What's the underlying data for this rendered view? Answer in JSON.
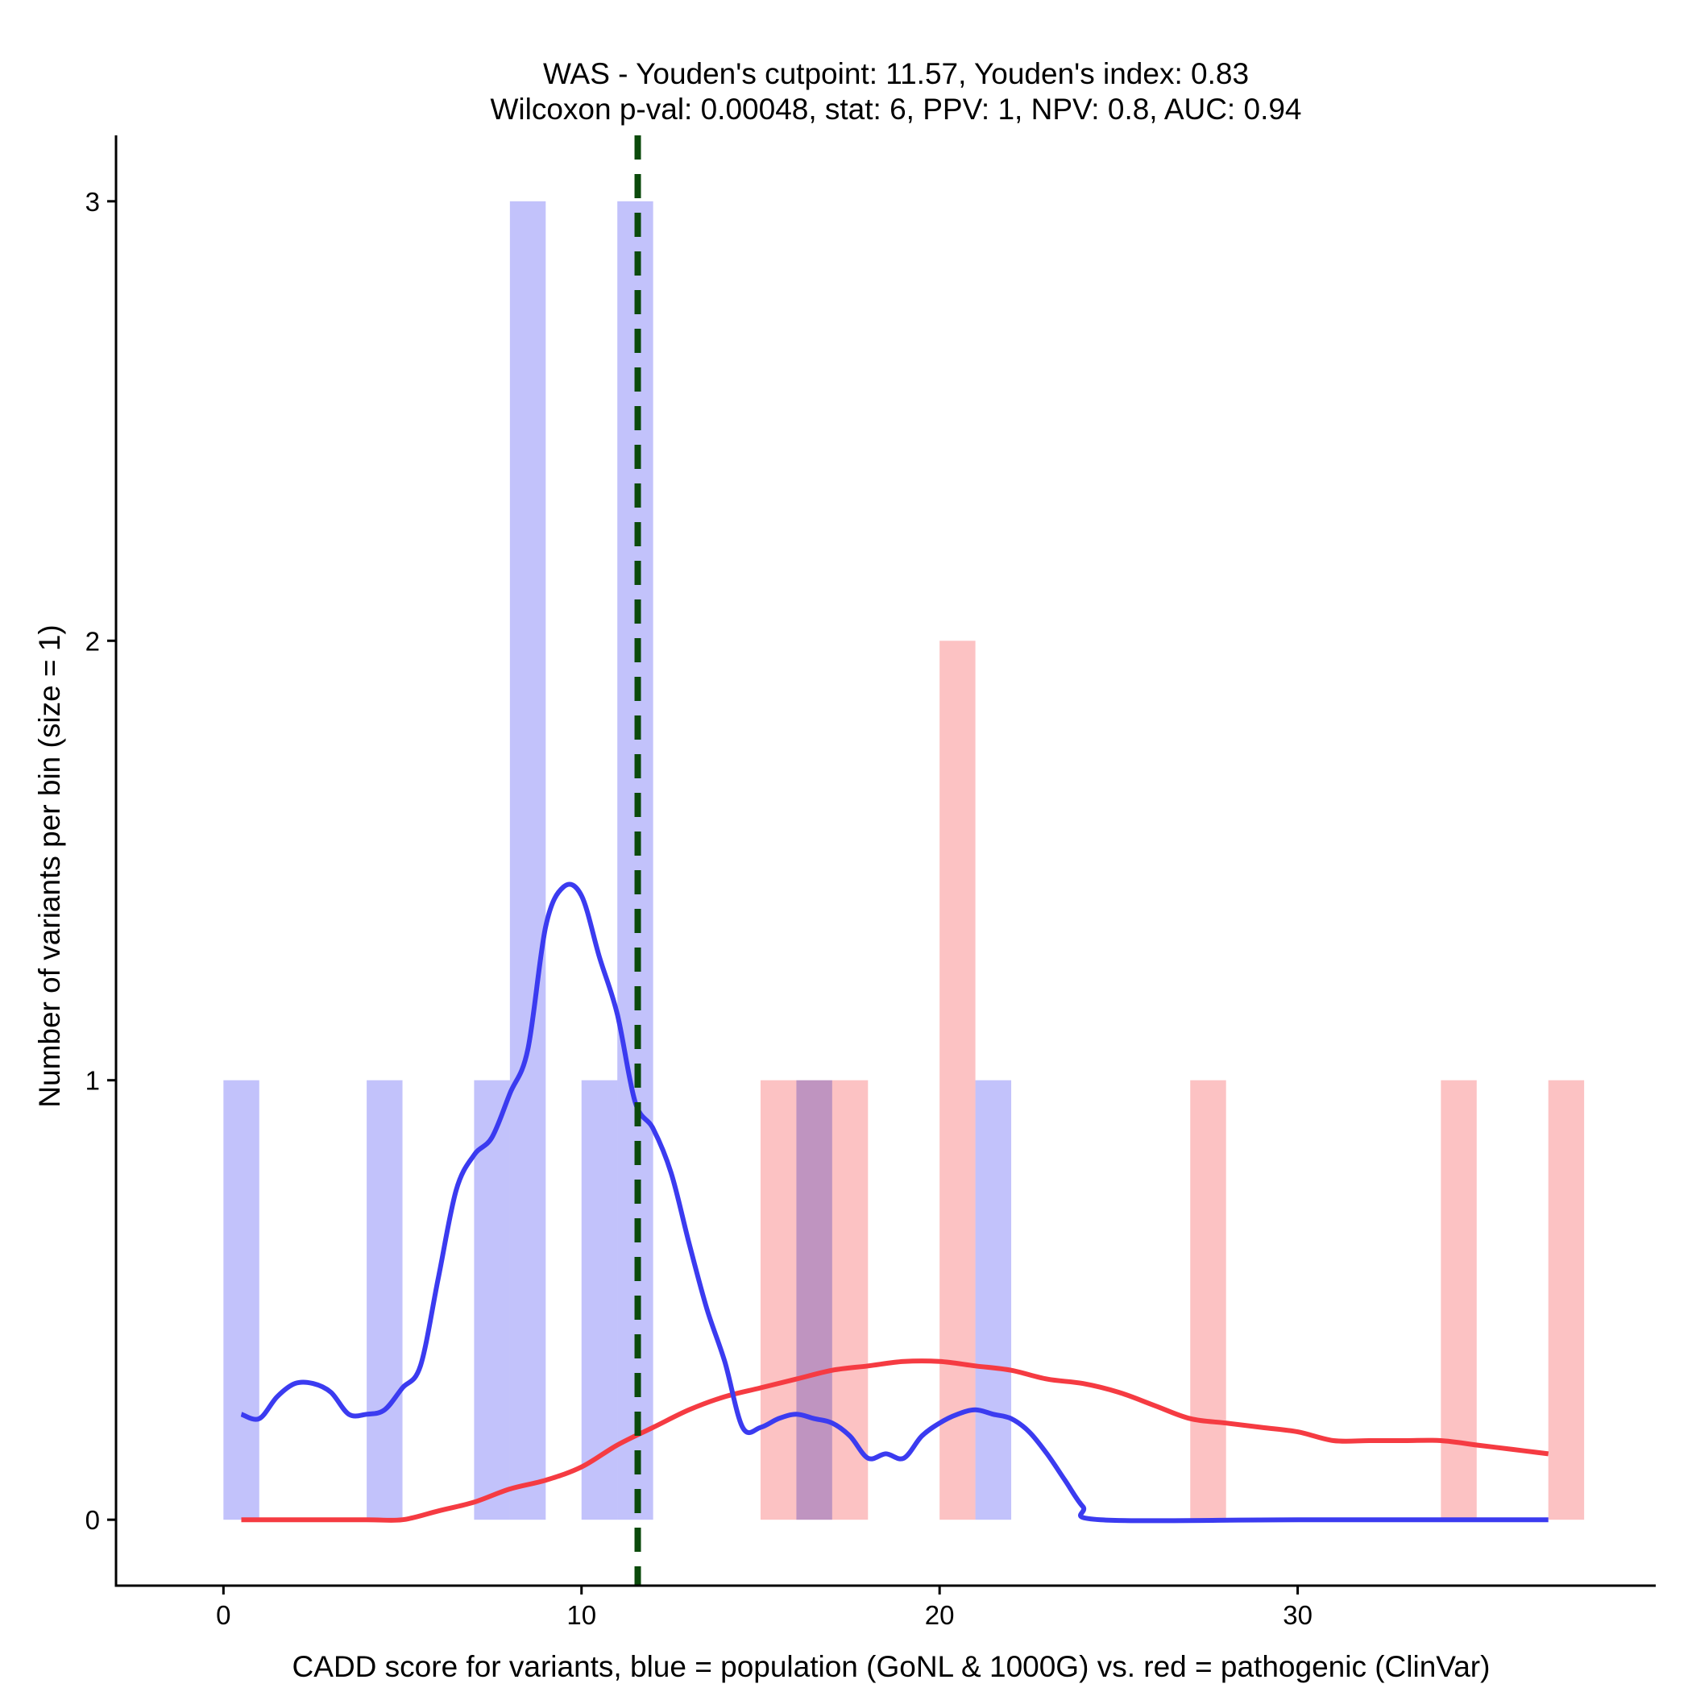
{
  "chart_data": {
    "type": "bar",
    "title_lines": [
      "WAS - Youden's cutpoint: 11.57, Youden's index: 0.83",
      "Wilcoxon p-val: 0.00048, stat: 6, PPV: 1, NPV: 0.8, AUC: 0.94"
    ],
    "xlabel": "CADD score for variants, blue = population (GoNL & 1000G) vs. red = pathogenic (ClinVar)",
    "ylabel": "Number of variants per bin (size = 1)",
    "xlim": [
      -3,
      40
    ],
    "ylim": [
      -0.15,
      3.15
    ],
    "x_ticks": [
      {
        "value": 0,
        "label": "0"
      },
      {
        "value": 10,
        "label": "10"
      },
      {
        "value": 20,
        "label": "20"
      },
      {
        "value": 30,
        "label": "30"
      }
    ],
    "y_ticks": [
      {
        "value": 0,
        "label": "0"
      },
      {
        "value": 1,
        "label": "1"
      },
      {
        "value": 2,
        "label": "2"
      },
      {
        "value": 3,
        "label": "3"
      }
    ],
    "bin_size": 1,
    "cutpoint": 11.57,
    "colors": {
      "population_bar": "#bfbffb",
      "pathogenic_bar": "#fcbfc0",
      "population_line": "#3b3bf0",
      "pathogenic_line": "#f53b42",
      "cutpoint_line": "#0b4a0b"
    },
    "series": [
      {
        "name": "population (GoNL & 1000G)",
        "bins": [
          {
            "start": 0,
            "count": 1
          },
          {
            "start": 4,
            "count": 1
          },
          {
            "start": 7,
            "count": 1
          },
          {
            "start": 8,
            "count": 3
          },
          {
            "start": 10,
            "count": 1
          },
          {
            "start": 11,
            "count": 3
          },
          {
            "start": 16,
            "count": 1
          },
          {
            "start": 21,
            "count": 1
          }
        ],
        "density": [
          [
            0.5,
            0.24
          ],
          [
            1.0,
            0.23
          ],
          [
            1.5,
            0.28
          ],
          [
            2.0,
            0.31
          ],
          [
            2.5,
            0.31
          ],
          [
            3.0,
            0.29
          ],
          [
            3.5,
            0.24
          ],
          [
            4.0,
            0.24
          ],
          [
            4.5,
            0.25
          ],
          [
            5.0,
            0.3
          ],
          [
            5.5,
            0.35
          ],
          [
            6.0,
            0.55
          ],
          [
            6.5,
            0.75
          ],
          [
            7.0,
            0.83
          ],
          [
            7.5,
            0.87
          ],
          [
            8.0,
            0.97
          ],
          [
            8.5,
            1.07
          ],
          [
            9.0,
            1.35
          ],
          [
            9.5,
            1.44
          ],
          [
            10.0,
            1.42
          ],
          [
            10.5,
            1.28
          ],
          [
            11.0,
            1.15
          ],
          [
            11.5,
            0.95
          ],
          [
            12.0,
            0.89
          ],
          [
            12.5,
            0.79
          ],
          [
            13.0,
            0.63
          ],
          [
            13.5,
            0.48
          ],
          [
            14.0,
            0.36
          ],
          [
            14.5,
            0.21
          ],
          [
            15.0,
            0.21
          ],
          [
            15.5,
            0.23
          ],
          [
            16.0,
            0.24
          ],
          [
            16.5,
            0.23
          ],
          [
            17.0,
            0.22
          ],
          [
            17.5,
            0.19
          ],
          [
            18.0,
            0.14
          ],
          [
            18.5,
            0.15
          ],
          [
            19.0,
            0.14
          ],
          [
            19.5,
            0.19
          ],
          [
            20.0,
            0.22
          ],
          [
            20.5,
            0.24
          ],
          [
            21.0,
            0.25
          ],
          [
            21.5,
            0.24
          ],
          [
            22.0,
            0.23
          ],
          [
            22.5,
            0.2
          ],
          [
            23.0,
            0.15
          ],
          [
            23.5,
            0.09
          ],
          [
            24.0,
            0.03
          ],
          [
            24.5,
            0.0
          ],
          [
            30.0,
            0.0
          ],
          [
            37.0,
            0.0
          ]
        ]
      },
      {
        "name": "pathogenic (ClinVar)",
        "bins": [
          {
            "start": 15,
            "count": 1
          },
          {
            "start": 16,
            "count": 1
          },
          {
            "start": 17,
            "count": 1
          },
          {
            "start": 20,
            "count": 2
          },
          {
            "start": 27,
            "count": 1
          },
          {
            "start": 34,
            "count": 1
          },
          {
            "start": 37,
            "count": 1
          }
        ],
        "density": [
          [
            0.5,
            0.0
          ],
          [
            2.0,
            0.0
          ],
          [
            4.0,
            0.0
          ],
          [
            5.0,
            0.0
          ],
          [
            6.0,
            0.02
          ],
          [
            7.0,
            0.04
          ],
          [
            8.0,
            0.07
          ],
          [
            9.0,
            0.09
          ],
          [
            10.0,
            0.12
          ],
          [
            11.0,
            0.17
          ],
          [
            12.0,
            0.21
          ],
          [
            13.0,
            0.25
          ],
          [
            14.0,
            0.28
          ],
          [
            15.0,
            0.3
          ],
          [
            16.0,
            0.32
          ],
          [
            17.0,
            0.34
          ],
          [
            18.0,
            0.35
          ],
          [
            19.0,
            0.36
          ],
          [
            20.0,
            0.36
          ],
          [
            21.0,
            0.35
          ],
          [
            22.0,
            0.34
          ],
          [
            23.0,
            0.32
          ],
          [
            24.0,
            0.31
          ],
          [
            25.0,
            0.29
          ],
          [
            26.0,
            0.26
          ],
          [
            27.0,
            0.23
          ],
          [
            28.0,
            0.22
          ],
          [
            29.0,
            0.21
          ],
          [
            30.0,
            0.2
          ],
          [
            31.0,
            0.18
          ],
          [
            32.0,
            0.18
          ],
          [
            33.0,
            0.18
          ],
          [
            34.0,
            0.18
          ],
          [
            35.0,
            0.17
          ],
          [
            36.0,
            0.16
          ],
          [
            37.0,
            0.15
          ]
        ]
      }
    ]
  }
}
